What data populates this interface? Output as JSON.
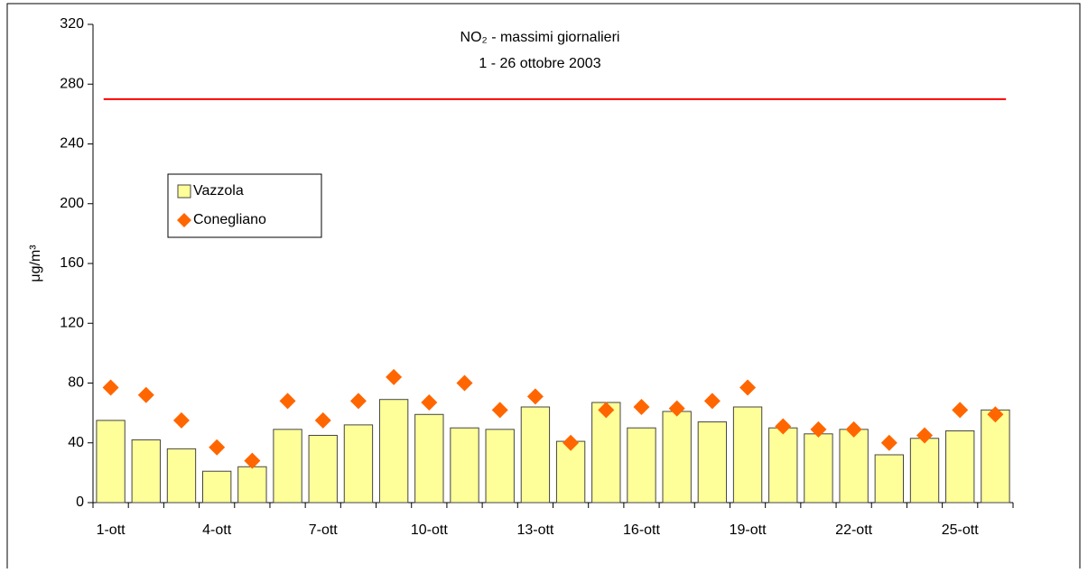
{
  "chart_data": {
    "type": "bar",
    "title": "NO₂ - massimi giornalieri",
    "subtitle": "1 - 26 ottobre 2003",
    "y_label": "μg/m³",
    "categories": [
      "1-ott",
      null,
      null,
      "4-ott",
      null,
      null,
      "7-ott",
      null,
      null,
      "10-ott",
      null,
      null,
      "13-ott",
      null,
      null,
      "16-ott",
      null,
      null,
      "19-ott",
      null,
      null,
      "22-ott",
      null,
      null,
      "25-ott",
      null
    ],
    "series": [
      {
        "name": "Vazzola",
        "type": "bar",
        "color": "#ffff99",
        "values": [
          55,
          42,
          36,
          21,
          24,
          49,
          45,
          52,
          69,
          59,
          50,
          49,
          64,
          41,
          67,
          50,
          61,
          54,
          64,
          50,
          46,
          49,
          32,
          43,
          48,
          62
        ]
      },
      {
        "name": "Conegliano",
        "type": "scatter",
        "color": "#ff6600",
        "values": [
          77,
          72,
          55,
          37,
          28,
          68,
          55,
          68,
          84,
          67,
          80,
          62,
          71,
          40,
          62,
          64,
          63,
          68,
          77,
          51,
          49,
          49,
          40,
          45,
          62,
          59
        ]
      }
    ],
    "reference_line": {
      "value": 270,
      "color": "#ff0000"
    },
    "ylim": [
      0,
      320
    ],
    "yticks": [
      0,
      40,
      80,
      120,
      160,
      200,
      240,
      280,
      320
    ],
    "grid": false,
    "legend": "upper-left"
  }
}
